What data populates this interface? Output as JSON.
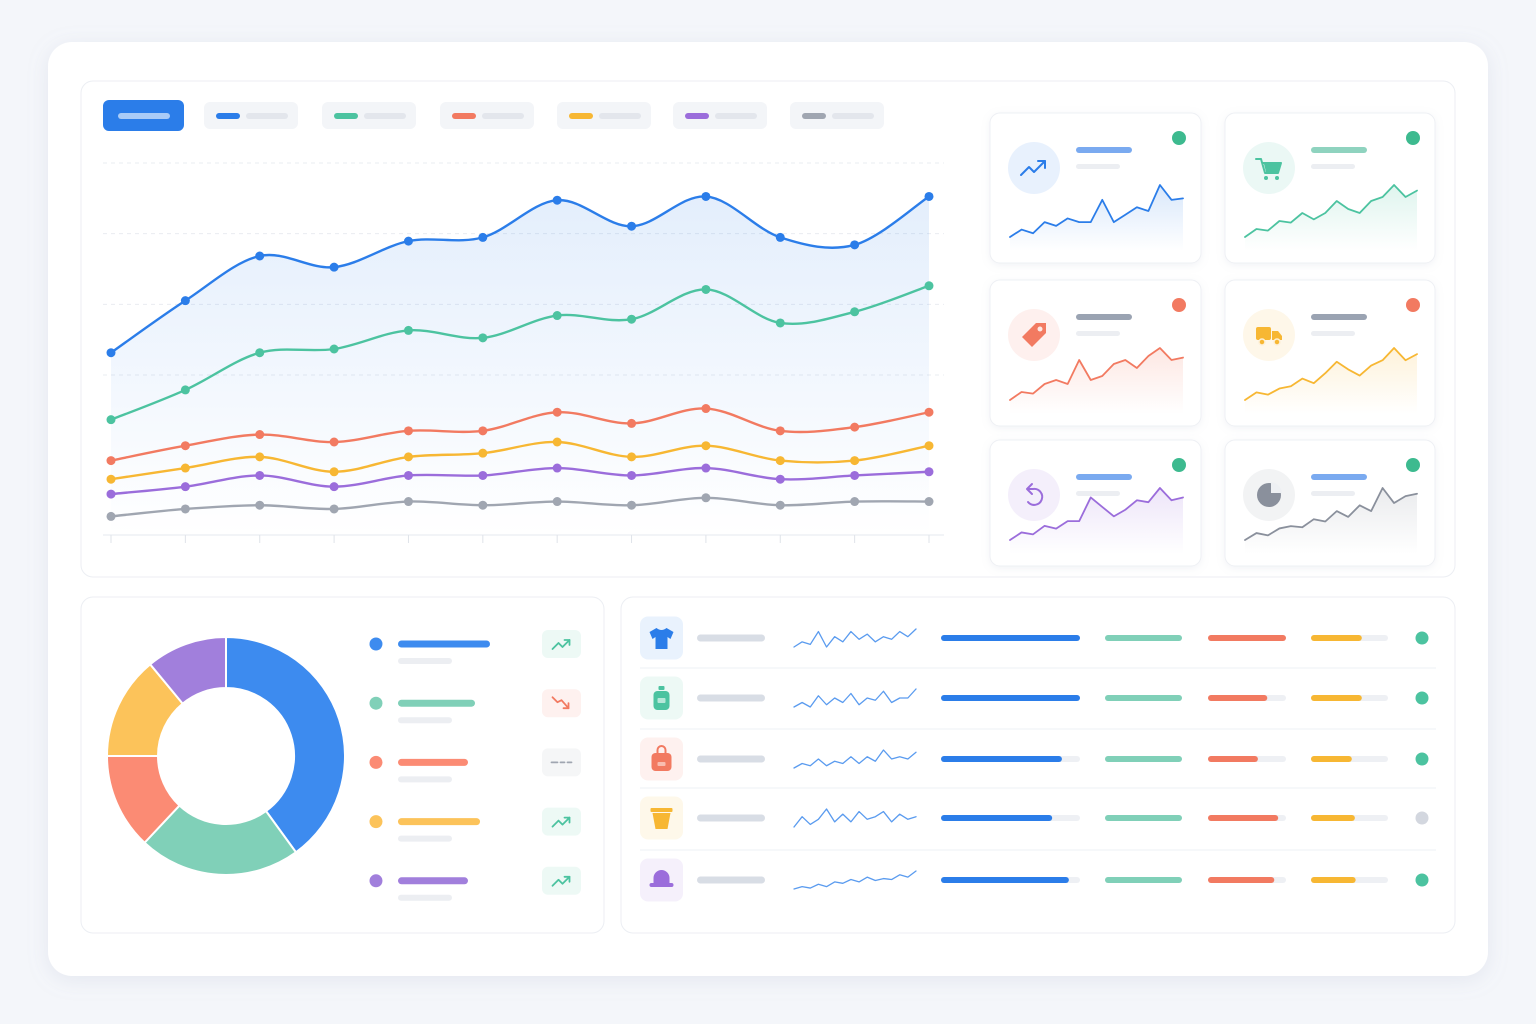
{
  "chart_data": [
    {
      "type": "line",
      "categories": [
        null,
        null,
        null,
        null,
        null,
        null,
        null,
        null,
        null,
        null,
        null,
        null
      ],
      "series": [
        {
          "color": "#2b7de9",
          "fill": true,
          "values": [
            49,
            63,
            75,
            72,
            79,
            80,
            90,
            83,
            91,
            80,
            78,
            91
          ]
        },
        {
          "color": "#4cc3a0",
          "values": [
            31,
            39,
            49,
            50,
            55,
            53,
            59,
            58,
            66,
            57,
            60,
            67
          ]
        },
        {
          "color": "#f27a61",
          "values": [
            20,
            24,
            27,
            25,
            28,
            28,
            33,
            30,
            34,
            28,
            29,
            33
          ]
        },
        {
          "color": "#f7b733",
          "values": [
            15,
            18,
            21,
            17,
            21,
            22,
            25,
            21,
            24,
            20,
            20,
            24
          ]
        },
        {
          "color": "#9b6ddb",
          "values": [
            11,
            13,
            16,
            13,
            16,
            16,
            18,
            16,
            18,
            15,
            16,
            17
          ]
        },
        {
          "color": "#a0a6b1",
          "values": [
            5,
            7,
            8,
            7,
            9,
            8,
            9,
            8,
            10,
            8,
            9,
            9
          ]
        }
      ],
      "ylim": [
        0,
        100
      ],
      "yticks": [
        43,
        62,
        81,
        100
      ],
      "grid": true
    },
    {
      "type": "pie",
      "values": [
        40,
        22,
        13,
        14,
        11
      ],
      "colors": [
        "#3d8bef",
        "#80d0b8",
        "#fb8b74",
        "#fcc35a",
        "#a17fdc"
      ],
      "trends": [
        "up",
        "down",
        "flat",
        "up",
        "up"
      ],
      "trend_colors": {
        "up": "#4cc3a0",
        "down": "#f27a61",
        "flat": "#a0a6b1"
      }
    }
  ],
  "kpi_cards": [
    {
      "icon": "trend",
      "color": "#2b7de9",
      "bar_color": "#7aaaf0",
      "status_color": "#3dba8f",
      "values": [
        2,
        3,
        2.5,
        4,
        3.5,
        4.5,
        4,
        4,
        7,
        4,
        5,
        6,
        5.5,
        9,
        7,
        7.2
      ]
    },
    {
      "icon": "cart",
      "color": "#4cc3a0",
      "bar_color": "#8fd3bf",
      "status_color": "#3dba8f",
      "values": [
        2,
        3,
        2.8,
        4,
        3.8,
        5,
        4.2,
        5,
        6.5,
        5.5,
        5,
        6.5,
        7,
        8.5,
        7,
        7.8
      ]
    },
    {
      "icon": "tag",
      "color": "#f27a61",
      "bar_color": "#9aa3b2",
      "status_color": "#f27a61",
      "values": [
        2,
        3,
        2.8,
        4,
        4.5,
        4,
        7,
        4.5,
        5,
        6.5,
        7,
        6,
        7.5,
        8.5,
        7,
        7.3
      ]
    },
    {
      "icon": "truck",
      "color": "#f7b733",
      "bar_color": "#9aa3b2",
      "status_color": "#f27a61",
      "values": [
        2,
        3,
        2.7,
        3.5,
        3.8,
        4.8,
        4.2,
        5.5,
        7,
        6,
        5.2,
        6.5,
        7.2,
        8.8,
        7.2,
        8
      ]
    },
    {
      "icon": "undo",
      "color": "#9b6ddb",
      "bar_color": "#7aaaf0",
      "status_color": "#3dba8f",
      "values": [
        2,
        2.8,
        2.6,
        3.5,
        3.2,
        4,
        4,
        6.5,
        5.5,
        4.5,
        5.2,
        6.2,
        6,
        7.5,
        6.2,
        6.5
      ]
    },
    {
      "icon": "pie",
      "color": "#8a909c",
      "bar_color": "#7aaaf0",
      "status_color": "#3dba8f",
      "values": [
        2,
        2.6,
        2.4,
        3,
        3.2,
        3.1,
        3.8,
        3.6,
        4.5,
        4,
        5,
        4.5,
        6.5,
        5.2,
        5.8,
        6
      ]
    }
  ],
  "table": {
    "bar_colors": [
      "#2b7de9",
      "#80d0b8",
      "#f27a61",
      "#f7b733"
    ],
    "rows": [
      {
        "icon": "shirt",
        "color": "#2b7de9",
        "status_color": "#4cc3a0",
        "sparkline": [
          3,
          4,
          3.5,
          6,
          3,
          5,
          4,
          6,
          4.5,
          5.5,
          4,
          5,
          4.5,
          6,
          5,
          6.5
        ],
        "bars": [
          100,
          100,
          100,
          66
        ]
      },
      {
        "icon": "bottle",
        "color": "#4cc3a0",
        "status_color": "#4cc3a0",
        "sparkline": [
          3,
          4,
          3,
          5.5,
          3.5,
          5,
          4,
          6,
          3.5,
          5,
          4.5,
          6.5,
          4,
          5,
          5,
          7
        ],
        "bars": [
          100,
          100,
          76,
          66
        ]
      },
      {
        "icon": "bag",
        "color": "#f27a61",
        "status_color": "#4cc3a0",
        "sparkline": [
          3,
          4,
          3.5,
          5,
          3.5,
          4.5,
          4,
          5.5,
          4,
          5.5,
          4.5,
          7,
          5,
          5.5,
          5,
          6.5
        ],
        "bars": [
          87,
          100,
          64,
          53
        ]
      },
      {
        "icon": "cup",
        "color": "#f7b733",
        "status_color": "#d3d7df",
        "sparkline": [
          3,
          5,
          3.5,
          4.5,
          6.5,
          4,
          5.5,
          4,
          6,
          4.5,
          5,
          6,
          4,
          5.5,
          4.5,
          5
        ],
        "bars": [
          80,
          100,
          90,
          57
        ]
      },
      {
        "icon": "hat",
        "color": "#9b6ddb",
        "status_color": "#4cc3a0",
        "sparkline": [
          3,
          3.5,
          3.2,
          4,
          3.5,
          4.5,
          4.2,
          5,
          4.5,
          5.5,
          4.8,
          5.2,
          5,
          6,
          5.5,
          6.8
        ],
        "bars": [
          92,
          100,
          85,
          58
        ]
      }
    ]
  }
}
